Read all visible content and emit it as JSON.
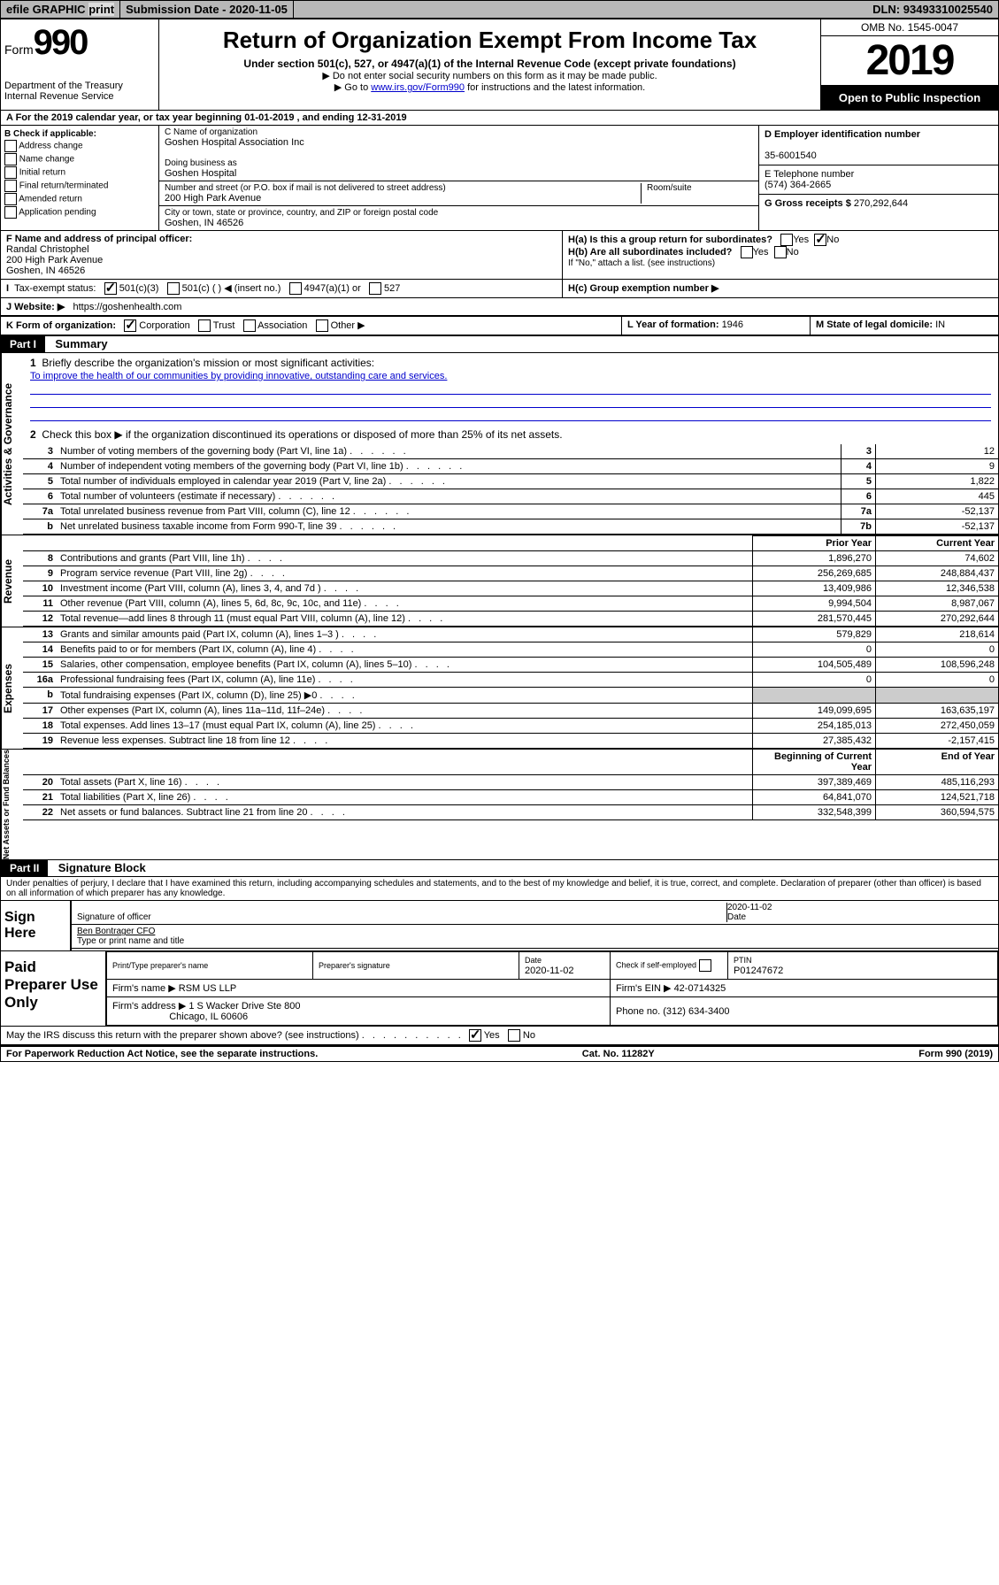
{
  "topbar": {
    "efile": "efile GRAPHIC",
    "print": "print",
    "sub_label": "Submission Date - ",
    "sub_date": "2020-11-05",
    "dln_label": "DLN: ",
    "dln": "93493310025540"
  },
  "header": {
    "form_label": "Form",
    "form_num": "990",
    "dept": "Department of the Treasury",
    "irs": "Internal Revenue Service",
    "title": "Return of Organization Exempt From Income Tax",
    "sub1": "Under section 501(c), 527, or 4947(a)(1) of the Internal Revenue Code (except private foundations)",
    "sub2": "▶ Do not enter social security numbers on this form as it may be made public.",
    "sub3_pre": "▶ Go to ",
    "sub3_link": "www.irs.gov/Form990",
    "sub3_post": " for instructions and the latest information.",
    "omb": "OMB No. 1545-0047",
    "year": "2019",
    "opi": "Open to Public Inspection"
  },
  "rowA": "A For the 2019 calendar year, or tax year beginning 01-01-2019   , and ending 12-31-2019",
  "colB": {
    "label": "B Check if applicable:",
    "opts": [
      "Address change",
      "Name change",
      "Initial return",
      "Final return/terminated",
      "Amended return",
      "Application pending"
    ]
  },
  "colC": {
    "name_label": "C Name of organization",
    "name": "Goshen Hospital Association Inc",
    "dba_label": "Doing business as",
    "dba": "Goshen Hospital",
    "addr_label": "Number and street (or P.O. box if mail is not delivered to street address)",
    "room_label": "Room/suite",
    "addr": "200 High Park Avenue",
    "city_label": "City or town, state or province, country, and ZIP or foreign postal code",
    "city": "Goshen, IN  46526"
  },
  "colD": {
    "ein_label": "D Employer identification number",
    "ein": "35-6001540",
    "tel_label": "E Telephone number",
    "tel": "(574) 364-2665",
    "gross_label": "G Gross receipts $ ",
    "gross": "270,292,644"
  },
  "rowF": {
    "label": "F  Name and address of principal officer:",
    "name": "Randal Christophel",
    "addr1": "200 High Park Avenue",
    "addr2": "Goshen, IN  46526"
  },
  "rowH": {
    "a": "H(a)  Is this a group return for subordinates?",
    "b": "H(b)  Are all subordinates included?",
    "note": "If \"No,\" attach a list. (see instructions)",
    "c": "H(c)  Group exemption number ▶"
  },
  "rowI": {
    "label": "Tax-exempt status:",
    "o1": "501(c)(3)",
    "o2": "501(c) (  ) ◀ (insert no.)",
    "o3": "4947(a)(1) or",
    "o4": "527"
  },
  "rowJ": {
    "label": "J   Website: ▶",
    "val": "https://goshenhealth.com"
  },
  "rowK": {
    "label": "K Form of organization:",
    "o1": "Corporation",
    "o2": "Trust",
    "o3": "Association",
    "o4": "Other ▶"
  },
  "rowL": {
    "label": "L Year of formation: ",
    "val": "1946"
  },
  "rowM": {
    "label": "M State of legal domicile: ",
    "val": "IN"
  },
  "part1": {
    "badge": "Part I",
    "title": "Summary"
  },
  "summary": {
    "q1": "Briefly describe the organization's mission or most significant activities:",
    "mission": "To improve the health of our communities by providing innovative, outstanding care and services.",
    "q2": "Check this box ▶        if the organization discontinued its operations or disposed of more than 25% of its net assets.",
    "rows_top": [
      {
        "n": "3",
        "desc": "Number of voting members of the governing body (Part VI, line 1a)",
        "box": "3",
        "val": "12"
      },
      {
        "n": "4",
        "desc": "Number of independent voting members of the governing body (Part VI, line 1b)",
        "box": "4",
        "val": "9"
      },
      {
        "n": "5",
        "desc": "Total number of individuals employed in calendar year 2019 (Part V, line 2a)",
        "box": "5",
        "val": "1,822"
      },
      {
        "n": "6",
        "desc": "Total number of volunteers (estimate if necessary)",
        "box": "6",
        "val": "445"
      },
      {
        "n": "7a",
        "desc": "Total unrelated business revenue from Part VIII, column (C), line 12",
        "box": "7a",
        "val": "-52,137"
      },
      {
        "n": "b",
        "desc": "Net unrelated business taxable income from Form 990-T, line 39",
        "box": "7b",
        "val": "-52,137"
      }
    ],
    "hdr_prior": "Prior Year",
    "hdr_curr": "Current Year",
    "revenue": [
      {
        "n": "8",
        "desc": "Contributions and grants (Part VIII, line 1h)",
        "p": "1,896,270",
        "c": "74,602"
      },
      {
        "n": "9",
        "desc": "Program service revenue (Part VIII, line 2g)",
        "p": "256,269,685",
        "c": "248,884,437"
      },
      {
        "n": "10",
        "desc": "Investment income (Part VIII, column (A), lines 3, 4, and 7d )",
        "p": "13,409,986",
        "c": "12,346,538"
      },
      {
        "n": "11",
        "desc": "Other revenue (Part VIII, column (A), lines 5, 6d, 8c, 9c, 10c, and 11e)",
        "p": "9,994,504",
        "c": "8,987,067"
      },
      {
        "n": "12",
        "desc": "Total revenue—add lines 8 through 11 (must equal Part VIII, column (A), line 12)",
        "p": "281,570,445",
        "c": "270,292,644"
      }
    ],
    "expenses": [
      {
        "n": "13",
        "desc": "Grants and similar amounts paid (Part IX, column (A), lines 1–3 )",
        "p": "579,829",
        "c": "218,614"
      },
      {
        "n": "14",
        "desc": "Benefits paid to or for members (Part IX, column (A), line 4)",
        "p": "0",
        "c": "0"
      },
      {
        "n": "15",
        "desc": "Salaries, other compensation, employee benefits (Part IX, column (A), lines 5–10)",
        "p": "104,505,489",
        "c": "108,596,248"
      },
      {
        "n": "16a",
        "desc": "Professional fundraising fees (Part IX, column (A), line 11e)",
        "p": "0",
        "c": "0"
      },
      {
        "n": "b",
        "desc": "Total fundraising expenses (Part IX, column (D), line 25) ▶0",
        "p": "",
        "c": "",
        "grey": true
      },
      {
        "n": "17",
        "desc": "Other expenses (Part IX, column (A), lines 11a–11d, 11f–24e)",
        "p": "149,099,695",
        "c": "163,635,197"
      },
      {
        "n": "18",
        "desc": "Total expenses. Add lines 13–17 (must equal Part IX, column (A), line 25)",
        "p": "254,185,013",
        "c": "272,450,059"
      },
      {
        "n": "19",
        "desc": "Revenue less expenses. Subtract line 18 from line 12",
        "p": "27,385,432",
        "c": "-2,157,415"
      }
    ],
    "hdr_begin": "Beginning of Current Year",
    "hdr_end": "End of Year",
    "netassets": [
      {
        "n": "20",
        "desc": "Total assets (Part X, line 16)",
        "p": "397,389,469",
        "c": "485,116,293"
      },
      {
        "n": "21",
        "desc": "Total liabilities (Part X, line 26)",
        "p": "64,841,070",
        "c": "124,521,718"
      },
      {
        "n": "22",
        "desc": "Net assets or fund balances. Subtract line 21 from line 20",
        "p": "332,548,399",
        "c": "360,594,575"
      }
    ],
    "vlabels": {
      "gov": "Activities & Governance",
      "rev": "Revenue",
      "exp": "Expenses",
      "net": "Net Assets or Fund Balances"
    }
  },
  "part2": {
    "badge": "Part II",
    "title": "Signature Block"
  },
  "perjury": "Under penalties of perjury, I declare that I have examined this return, including accompanying schedules and statements, and to the best of my knowledge and belief, it is true, correct, and complete. Declaration of preparer (other than officer) is based on all information of which preparer has any knowledge.",
  "sign": {
    "here": "Sign Here",
    "date": "2020-11-02",
    "sig_label": "Signature of officer",
    "date_label": "Date",
    "name": "Ben Bontrager CFO",
    "name_label": "Type or print name and title"
  },
  "prep": {
    "left": "Paid Preparer Use Only",
    "h1": "Print/Type preparer's name",
    "h2": "Preparer's signature",
    "h3_label": "Date",
    "h3": "2020-11-02",
    "h4": "Check         if self-employed",
    "h5_label": "PTIN",
    "h5": "P01247672",
    "firm_name_label": "Firm's name      ▶",
    "firm_name": "RSM US LLP",
    "firm_ein_label": "Firm's EIN ▶",
    "firm_ein": "42-0714325",
    "firm_addr_label": "Firm's address ▶",
    "firm_addr1": "1 S Wacker Drive Ste 800",
    "firm_addr2": "Chicago, IL  60606",
    "phone_label": "Phone no. ",
    "phone": "(312) 634-3400"
  },
  "discuss": "May the IRS discuss this return with the preparer shown above? (see instructions)",
  "footer": {
    "left": "For Paperwork Reduction Act Notice, see the separate instructions.",
    "mid": "Cat. No. 11282Y",
    "right": "Form 990 (2019)"
  },
  "yes": "Yes",
  "no": "No"
}
